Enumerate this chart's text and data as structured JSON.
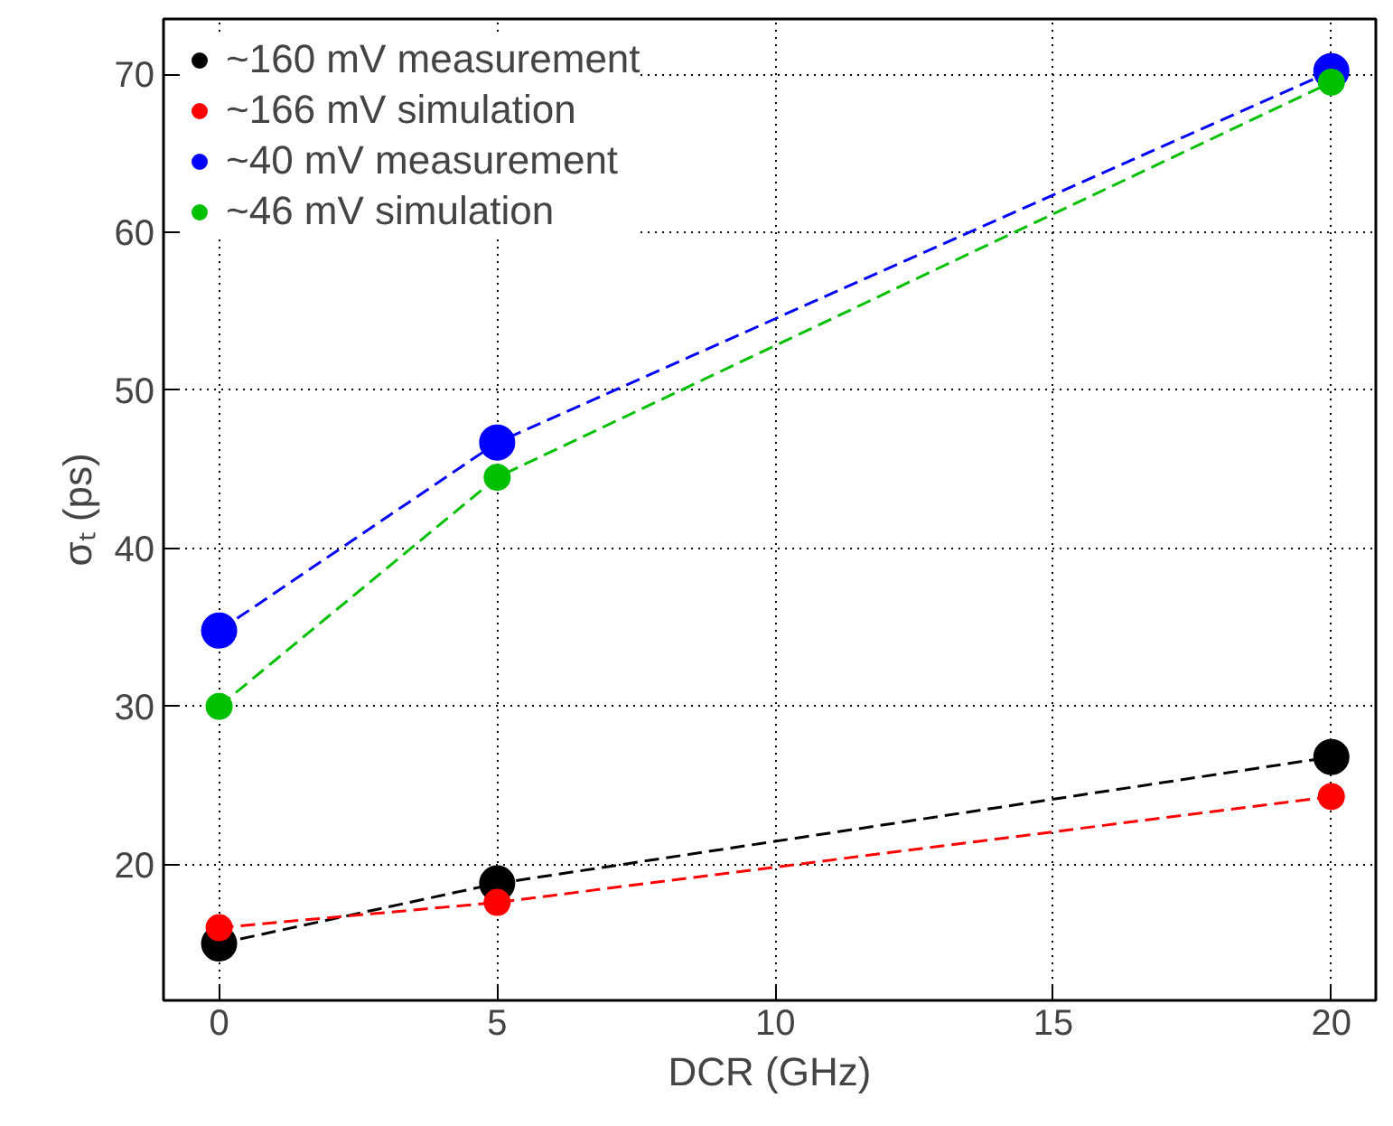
{
  "chart_data": {
    "type": "line",
    "xlabel": "DCR (GHz)",
    "ylabel": "σₜ (ps)",
    "x": [
      0,
      5,
      20
    ],
    "series": [
      {
        "name": "~160 mV measurement",
        "color": "#000000",
        "values": [
          15,
          18.8,
          26.8
        ]
      },
      {
        "name": "~166 mV simulation",
        "color": "#ff0000",
        "values": [
          16,
          17.6,
          24.3
        ]
      },
      {
        "name": "~40 mV measurement",
        "color": "#0000ff",
        "values": [
          34.8,
          46.7,
          70.2
        ]
      },
      {
        "name": "~46 mV simulation",
        "color": "#00c000",
        "values": [
          30,
          44.5,
          69.5
        ]
      }
    ],
    "xlim": [
      -1,
      20.8
    ],
    "ylim": [
      11.4,
      73.5
    ],
    "xticks": [
      0,
      5,
      10,
      15,
      20
    ],
    "yticks": [
      20,
      30,
      40,
      50,
      60,
      70
    ],
    "grid": true,
    "legend": "top left",
    "marker": "circle",
    "line_style": "dashed"
  }
}
